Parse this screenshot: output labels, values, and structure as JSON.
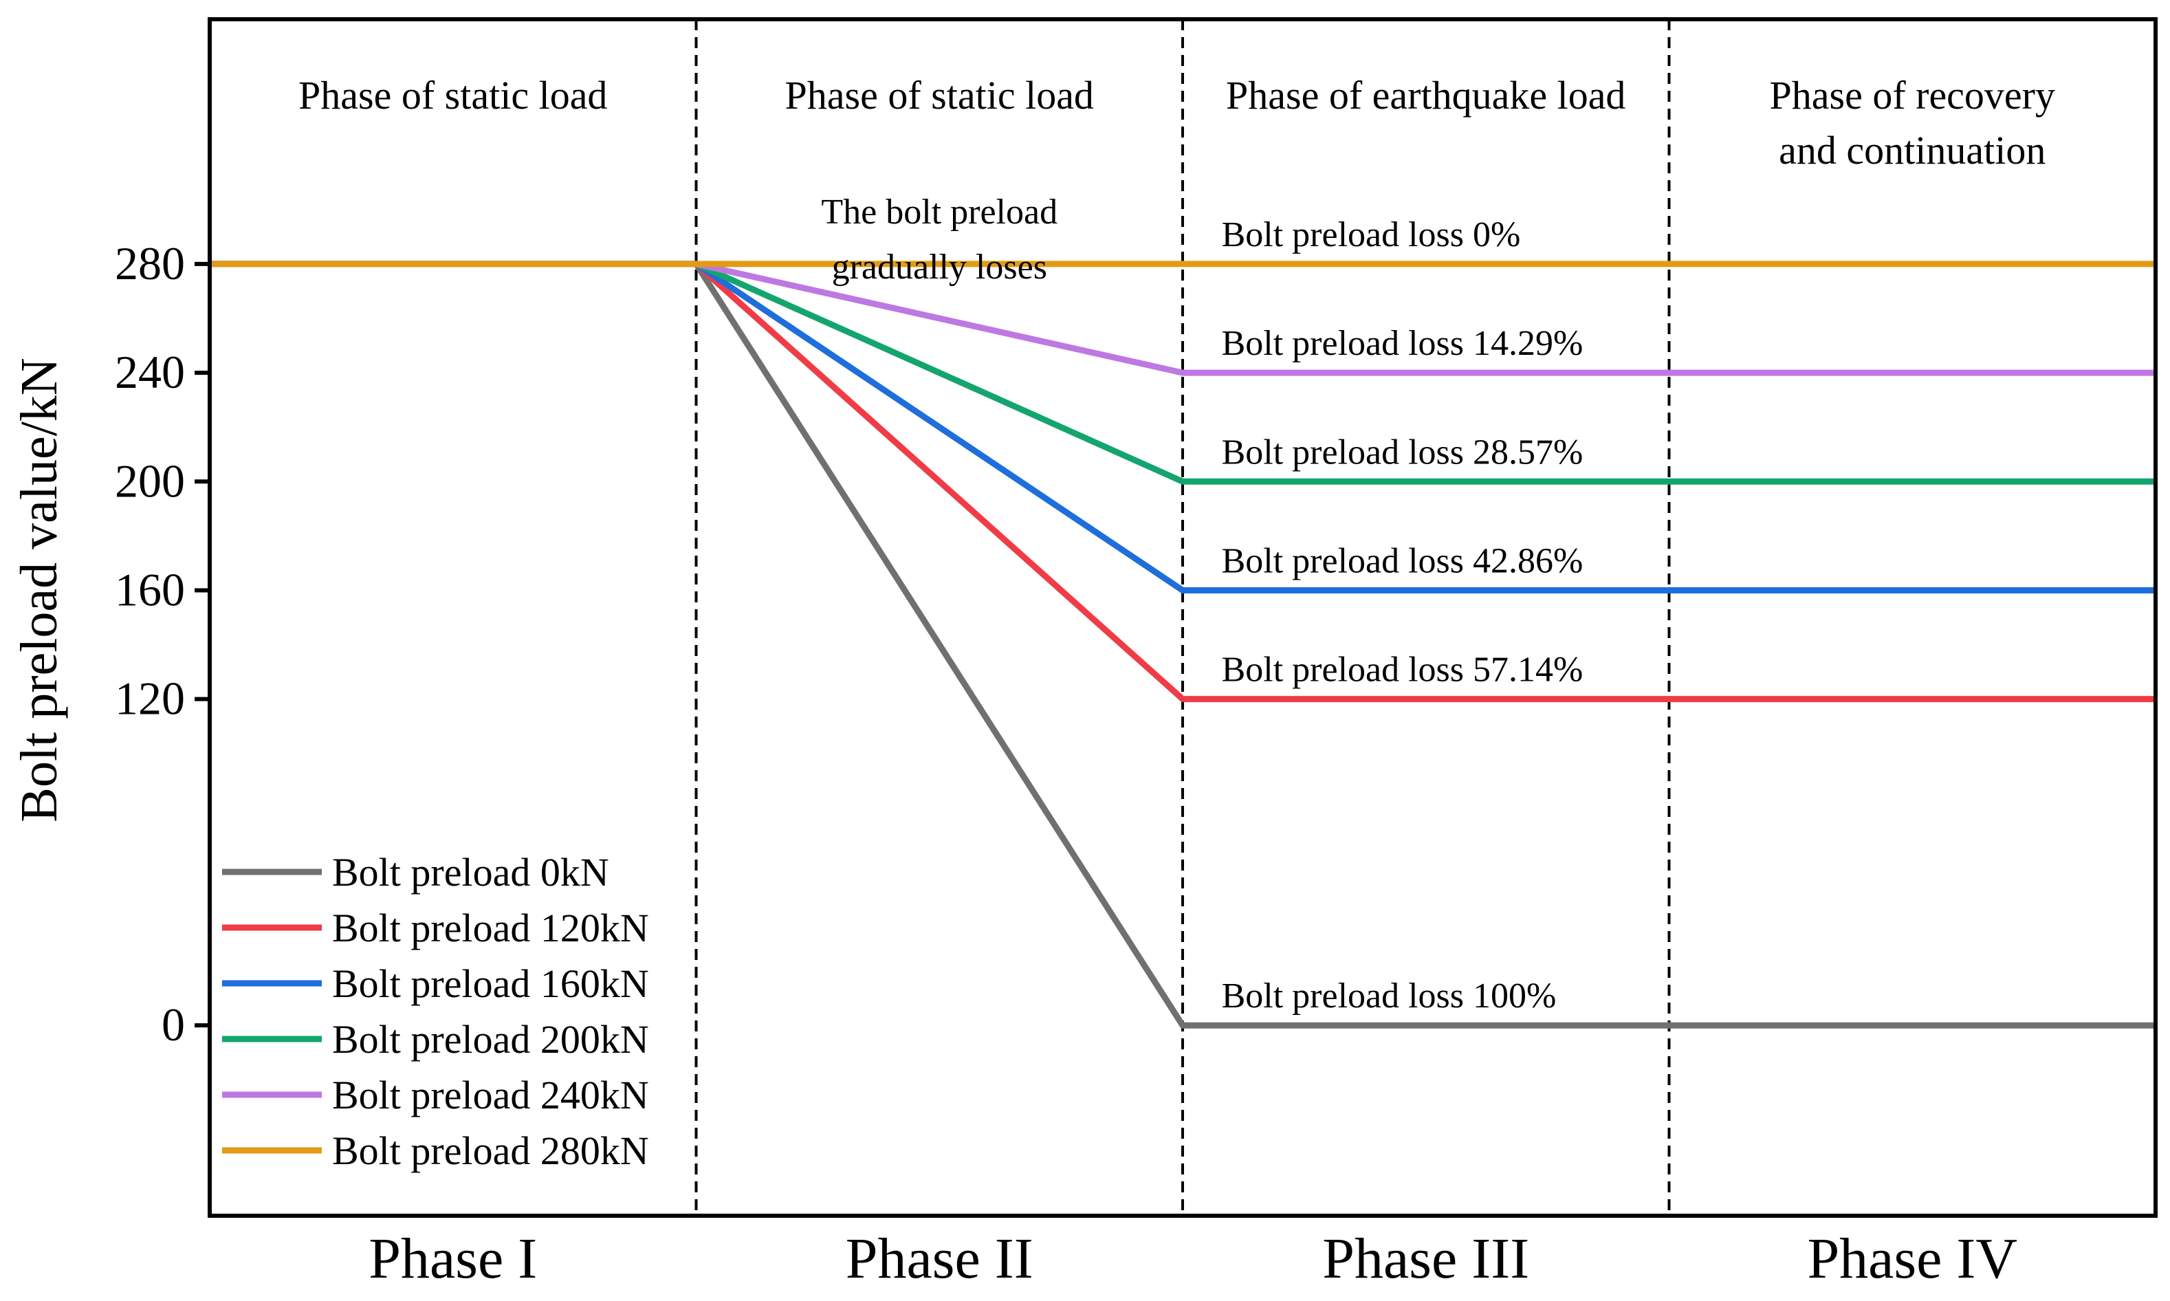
{
  "chart_data": {
    "type": "line",
    "ylabel": "Bolt preload value/kN",
    "y_ticks": [
      0,
      120,
      160,
      200,
      240,
      280
    ],
    "ylim": [
      -70,
      370
    ],
    "xlim": [
      0,
      4
    ],
    "phases": [
      "Phase I",
      "Phase II",
      "Phase III",
      "Phase IV"
    ],
    "phase_descriptions": [
      {
        "title": "Phase of static load",
        "title2": "",
        "detail": "",
        "detail2": ""
      },
      {
        "title": "Phase of static load",
        "title2": "",
        "detail": "The bolt preload",
        "detail2": "gradually loses"
      },
      {
        "title": "Phase of earthquake load",
        "title2": "",
        "detail": "",
        "detail2": ""
      },
      {
        "title": "Phase of recovery",
        "title2": "and continuation",
        "detail": "",
        "detail2": ""
      }
    ],
    "x": [
      0,
      1,
      2,
      3,
      4
    ],
    "series": [
      {
        "name": "Bolt preload 0kN",
        "color": "#707070",
        "values": [
          280,
          280,
          0,
          0,
          0
        ]
      },
      {
        "name": "Bolt preload 120kN",
        "color": "#f03c46",
        "values": [
          280,
          280,
          120,
          120,
          120
        ]
      },
      {
        "name": "Bolt preload 160kN",
        "color": "#1e6edc",
        "values": [
          280,
          280,
          160,
          160,
          160
        ]
      },
      {
        "name": "Bolt preload 200kN",
        "color": "#14a56e",
        "values": [
          280,
          280,
          200,
          200,
          200
        ]
      },
      {
        "name": "Bolt preload 240kN",
        "color": "#be78e1",
        "values": [
          280,
          280,
          240,
          240,
          240
        ]
      },
      {
        "name": "Bolt preload 280kN",
        "color": "#e19b14",
        "values": [
          280,
          280,
          280,
          280,
          280
        ]
      }
    ],
    "annotations": [
      {
        "text": "Bolt preload loss 0%",
        "x": 2.08,
        "y": 280
      },
      {
        "text": "Bolt preload loss 14.29%",
        "x": 2.08,
        "y": 240
      },
      {
        "text": "Bolt preload loss 28.57%",
        "x": 2.08,
        "y": 200
      },
      {
        "text": "Bolt preload loss 42.86%",
        "x": 2.08,
        "y": 160
      },
      {
        "text": "Bolt preload loss 57.14%",
        "x": 2.08,
        "y": 120
      },
      {
        "text": "Bolt preload loss 100%",
        "x": 2.08,
        "y": 0
      }
    ],
    "legend_position": "bottom-left",
    "grid": false
  }
}
